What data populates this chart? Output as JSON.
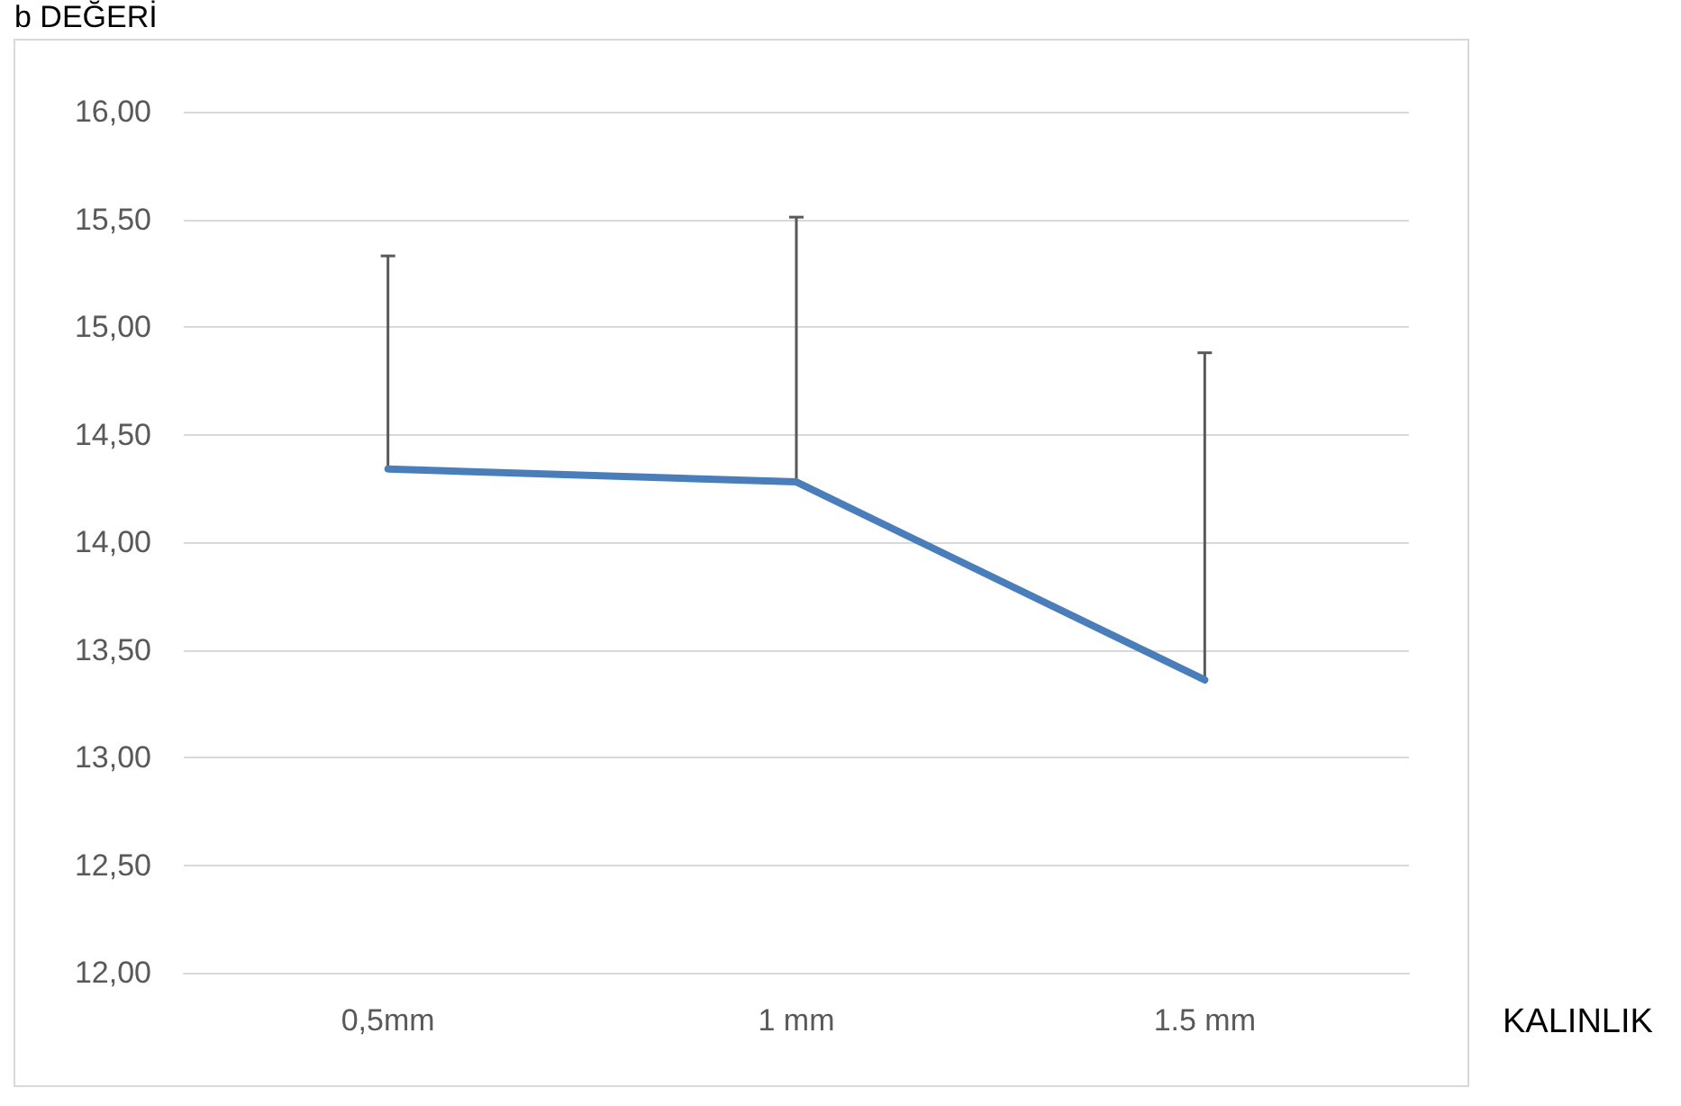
{
  "chart_data": {
    "type": "line",
    "ylabel": "b DEĞERİ",
    "xlabel": "KALINLIK",
    "categories": [
      "0,5mm",
      "1 mm",
      "1.5 mm"
    ],
    "series": [
      {
        "color": "#4a7ebb",
        "values": [
          14.34,
          14.28,
          13.36
        ],
        "errors": [
          [
            14.34,
            15.33
          ],
          [
            14.28,
            15.51
          ],
          [
            13.36,
            14.88
          ]
        ]
      }
    ],
    "ylim": [
      12,
      16
    ],
    "yticks": [
      {
        "value": 12,
        "label": "12,00"
      },
      {
        "value": 12.5,
        "label": "12,50"
      },
      {
        "value": 13,
        "label": "13,00"
      },
      {
        "value": 13.5,
        "label": "13,50"
      },
      {
        "value": 14,
        "label": "14,00"
      },
      {
        "value": 14.5,
        "label": "14,50"
      },
      {
        "value": 15,
        "label": "15,00"
      },
      {
        "value": 15.5,
        "label": "15,50"
      },
      {
        "value": 16,
        "label": "16,00"
      }
    ],
    "grid": "y",
    "marker": "none",
    "line_style": "solid"
  }
}
